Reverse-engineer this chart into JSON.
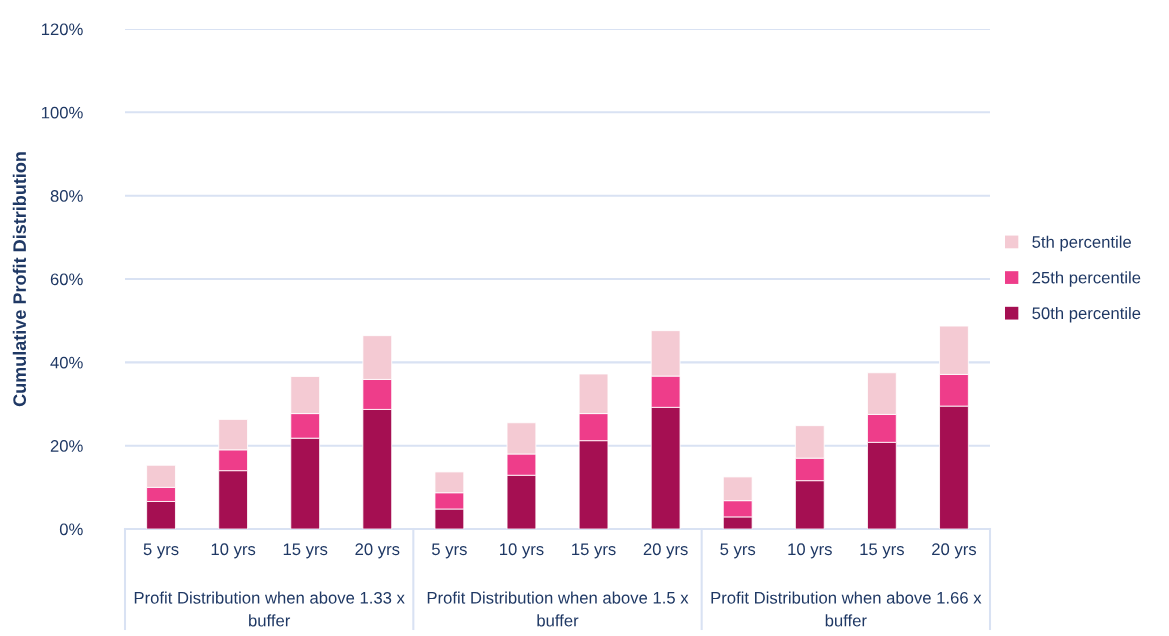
{
  "chart_data": {
    "type": "bar",
    "stacked": true,
    "ylabel": "Cumulative Profit Distribution",
    "categories": [
      "5 yrs",
      "10 yrs",
      "15 yrs",
      "20 yrs",
      "5 yrs",
      "10 yrs",
      "15 yrs",
      "20 yrs",
      "5 yrs",
      "10 yrs",
      "15 yrs",
      "20 yrs"
    ],
    "series": [
      {
        "name": "50th percentile",
        "color": "#a50f52",
        "values": [
          6.6,
          14.0,
          21.8,
          28.7,
          4.8,
          12.9,
          21.2,
          29.2,
          2.9,
          11.6,
          20.8,
          29.5
        ]
      },
      {
        "name": "25th percentile",
        "color": "#ee3d8a",
        "values": [
          3.4,
          5.0,
          5.9,
          7.2,
          3.9,
          5.1,
          6.5,
          7.5,
          3.9,
          5.4,
          6.7,
          7.6
        ]
      },
      {
        "name": "5th percentile",
        "color": "#f4cad3",
        "values": [
          5.3,
          7.3,
          8.9,
          10.5,
          5.0,
          7.5,
          9.5,
          10.9,
          5.7,
          7.8,
          10.0,
          11.6
        ]
      }
    ],
    "annotations": [
      "Profit Distribution when above 1.33 x\nbuffer",
      "Profit Distribution when above 1.5 x\nbuffer",
      "Profit Distribution when above 1.66 x\nbuffer"
    ],
    "ylim": [
      0,
      120
    ],
    "yticks": [
      {
        "value": 0,
        "label": "0%"
      },
      {
        "value": 20,
        "label": "20%"
      },
      {
        "value": 40,
        "label": "40%"
      },
      {
        "value": 60,
        "label": "60%"
      },
      {
        "value": 80,
        "label": "80%"
      },
      {
        "value": 100,
        "label": "100%"
      },
      {
        "value": 120,
        "label": "120%"
      }
    ],
    "grid": "y",
    "legend": "right"
  }
}
